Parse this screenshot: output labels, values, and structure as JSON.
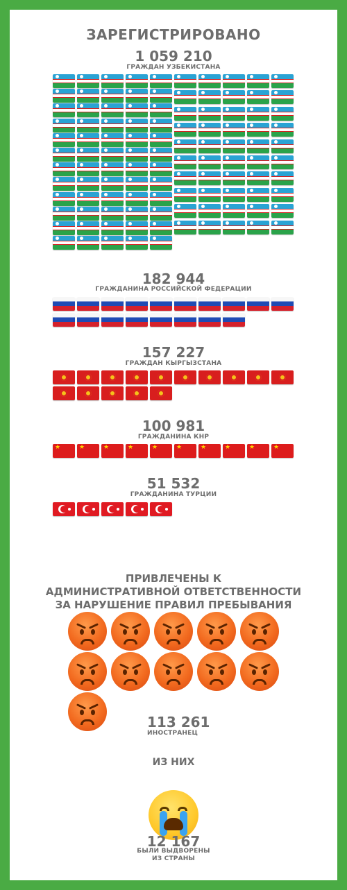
{
  "title": "ЗАРЕГИСТРИРОВАНО",
  "registered": [
    {
      "number": "1 059 210",
      "label": "ГРАЖДАН УЗБЕКИСТАНА",
      "flag": "uzbekistan-flag-icon",
      "flags_shown": 111
    },
    {
      "number": "182 944",
      "label": "ГРАЖДАНИНА РОССИЙСКОЙ ФЕДЕРАЦИИ",
      "flag": "russia-flag-icon",
      "flags_shown": 18
    },
    {
      "number": "157 227",
      "label": "ГРАЖДАН КЫРГЫЗСТАНА",
      "flag": "kyrgyzstan-flag-icon",
      "flags_shown": 15
    },
    {
      "number": "100 981",
      "label": "ГРАЖДАНИНА КНР",
      "flag": "china-flag-icon",
      "flags_shown": 10
    },
    {
      "number": "51 532",
      "label": "ГРАЖДАНИНА ТУРЦИИ",
      "flag": "turkey-flag-icon",
      "flags_shown": 5
    }
  ],
  "penalty": {
    "heading_lines": [
      "ПРИВЛЕЧЕНЫ К",
      "АДМИНИСТРАТИВНОЙ ОТВЕТСТВЕННОСТИ",
      "ЗА НАРУШЕНИЕ ПРАВИЛ ПРЕБЫВАНИЯ"
    ],
    "icon": "angry-face-icon",
    "icons_shown": 11,
    "number": "113 261",
    "label": "ИНОСТРАНЕЦ"
  },
  "of_them": "ИЗ НИХ",
  "deported": {
    "icon": "crying-face-icon",
    "number": "12 167",
    "label_lines": [
      "БЫЛИ ВЫДВОРЕНЫ",
      "ИЗ СТРАНЫ"
    ]
  },
  "colors": {
    "background_border": "#4aab44",
    "text": "#6d6d6d"
  }
}
